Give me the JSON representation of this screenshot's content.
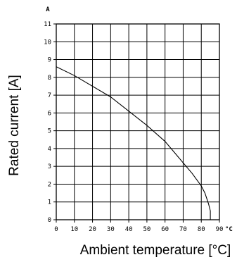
{
  "chart_data": {
    "type": "line",
    "xlabel": "Ambient temperature [°C]",
    "ylabel": "Rated current [A]",
    "x_unit": "°C",
    "y_unit": "A",
    "xlim": [
      0,
      90
    ],
    "ylim": [
      0,
      11
    ],
    "x_ticks": [
      "0",
      "10",
      "20",
      "30",
      "40",
      "50",
      "60",
      "70",
      "80",
      "90"
    ],
    "y_ticks": [
      "0",
      "1",
      "2",
      "3",
      "4",
      "5",
      "6",
      "7",
      "8",
      "9",
      "10",
      "11"
    ],
    "grid": true,
    "series": [
      {
        "x": [
          0,
          10,
          20,
          30,
          40,
          50,
          60,
          70,
          75,
          80,
          82,
          84,
          85,
          85
        ],
        "y": [
          8.6,
          8.1,
          7.5,
          6.9,
          6.1,
          5.3,
          4.4,
          3.2,
          2.6,
          1.9,
          1.5,
          0.9,
          0.5,
          0
        ]
      }
    ]
  }
}
